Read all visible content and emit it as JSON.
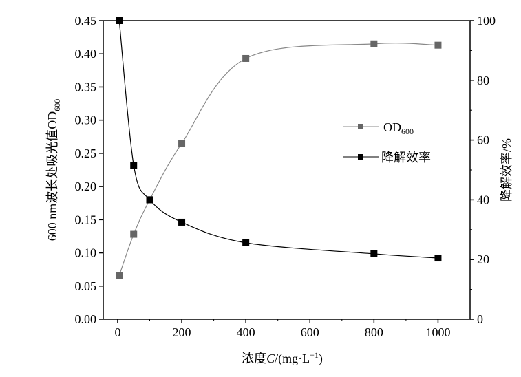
{
  "chart_data": {
    "type": "line",
    "xlabel": "浓度C/(mg·L⁻¹)",
    "xlabel_parts": {
      "prefix": "浓度",
      "italic": "C",
      "suffix": "/(mg·L",
      "sup": "−1",
      "close": ")"
    },
    "ylabel_left": "600 nm波长处吸光值OD600",
    "ylabel_left_parts": {
      "main": "600 nm波长处吸光值OD",
      "sub": "600"
    },
    "ylabel_right": "降解效率/%",
    "xlim": [
      -45,
      1100
    ],
    "ylim_left": [
      0,
      0.45
    ],
    "ylim_right": [
      0,
      100
    ],
    "x_ticks": [
      "0",
      "200",
      "400",
      "600",
      "800",
      "1000"
    ],
    "x_tick_values": [
      0,
      200,
      400,
      600,
      800,
      1000
    ],
    "y_left_ticks": [
      "0.00",
      "0.05",
      "0.10",
      "0.15",
      "0.20",
      "0.25",
      "0.30",
      "0.35",
      "0.40",
      "0.45"
    ],
    "y_left_tick_values": [
      0,
      0.05,
      0.1,
      0.15,
      0.2,
      0.25,
      0.3,
      0.35,
      0.4,
      0.45
    ],
    "y_right_ticks": [
      "0",
      "20",
      "40",
      "60",
      "80",
      "100"
    ],
    "y_right_tick_values": [
      0,
      20,
      40,
      60,
      80,
      100
    ],
    "grid": false,
    "legend_position": "center-right",
    "series": [
      {
        "name": "OD600",
        "name_main": "OD",
        "name_sub": "600",
        "axis": "left",
        "color": "#666666",
        "x": [
          5,
          50,
          100,
          200,
          400,
          800,
          1000
        ],
        "y": [
          0.066,
          0.128,
          0.18,
          0.265,
          0.393,
          0.415,
          0.413
        ]
      },
      {
        "name": "降解效率",
        "axis": "right",
        "color": "#000000",
        "x": [
          5,
          50,
          100,
          200,
          400,
          800,
          1000
        ],
        "y": [
          100,
          51.6,
          40,
          32.5,
          25.6,
          21.9,
          20.5
        ]
      }
    ]
  }
}
